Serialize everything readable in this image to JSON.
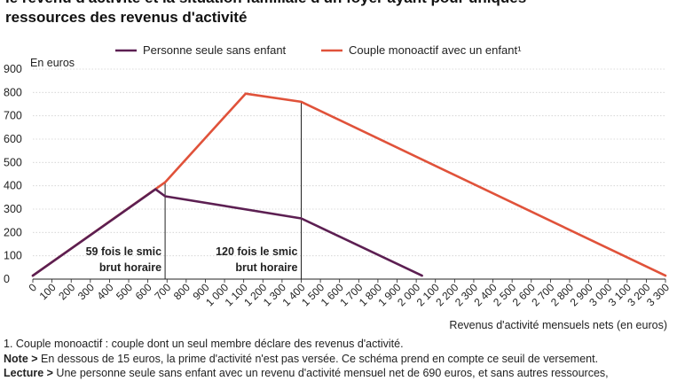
{
  "title": {
    "line1": "le revenu d'activité et la situation familiale d'un foyer ayant pour uniques",
    "line2": "ressources des revenus d'activité"
  },
  "notes": {
    "footnote": "1. Couple monoactif : couple dont un seul membre déclare des revenus d'activité.",
    "note_label": "Note >",
    "note_text": " En dessous de 15 euros, la prime d'activité n'est pas versée. Ce schéma prend en compte ce seuil de versement.",
    "lecture_label": "Lecture >",
    "lecture_text": " Une personne seule sans enfant avec un revenu d'activité mensuel net de 690 euros, et sans autres ressources,"
  },
  "chart_data": {
    "type": "line",
    "ylabel": "En euros",
    "xlabel": "Revenus d'activité mensuels nets (en euros)",
    "xlim": [
      0,
      3300
    ],
    "ylim": [
      0,
      900
    ],
    "x_ticks": [
      0,
      100,
      200,
      300,
      400,
      500,
      600,
      700,
      800,
      900,
      1000,
      1100,
      1200,
      1300,
      1400,
      1500,
      1600,
      1700,
      1800,
      1900,
      2000,
      2100,
      2200,
      2300,
      2400,
      2500,
      2600,
      2700,
      2800,
      2900,
      3000,
      3100,
      3200,
      3300
    ],
    "x_tick_labels": [
      "0",
      "100",
      "200",
      "300",
      "400",
      "500",
      "600",
      "700",
      "800",
      "900",
      "1 000",
      "1 100",
      "1 200",
      "1 300",
      "1 400",
      "1 500",
      "1 600",
      "1 700",
      "1 800",
      "1 900",
      "2 000",
      "2 100",
      "2 200",
      "2 300",
      "2 400",
      "2 500",
      "2 600",
      "2 700",
      "2 800",
      "2 900",
      "3 000",
      "3 100",
      "3 200",
      "3 300"
    ],
    "y_ticks": [
      0,
      100,
      200,
      300,
      400,
      500,
      600,
      700,
      800,
      900
    ],
    "y_tick_labels": [
      "0",
      "100",
      "200",
      "300",
      "400",
      "500",
      "600",
      "700",
      "800",
      "900"
    ],
    "legend_position": "top",
    "series": [
      {
        "name": "Personne seule sans enfant",
        "color": "#5c1f52",
        "points": [
          [
            0,
            15
          ],
          [
            640,
            385
          ],
          [
            690,
            355
          ],
          [
            1400,
            260
          ],
          [
            2030,
            15
          ]
        ]
      },
      {
        "name": "Couple monoactif avec un enfant¹",
        "color": "#e0523a",
        "points": [
          [
            0,
            15
          ],
          [
            690,
            415
          ],
          [
            1110,
            795
          ],
          [
            1400,
            760
          ],
          [
            3300,
            15
          ]
        ]
      }
    ],
    "reference_lines": [
      {
        "x": 690,
        "y": 415,
        "label_line1": "59 fois le smic",
        "label_line2": "brut horaire"
      },
      {
        "x": 1400,
        "y": 760,
        "label_line1": "120 fois le smic",
        "label_line2": "brut horaire"
      }
    ]
  }
}
